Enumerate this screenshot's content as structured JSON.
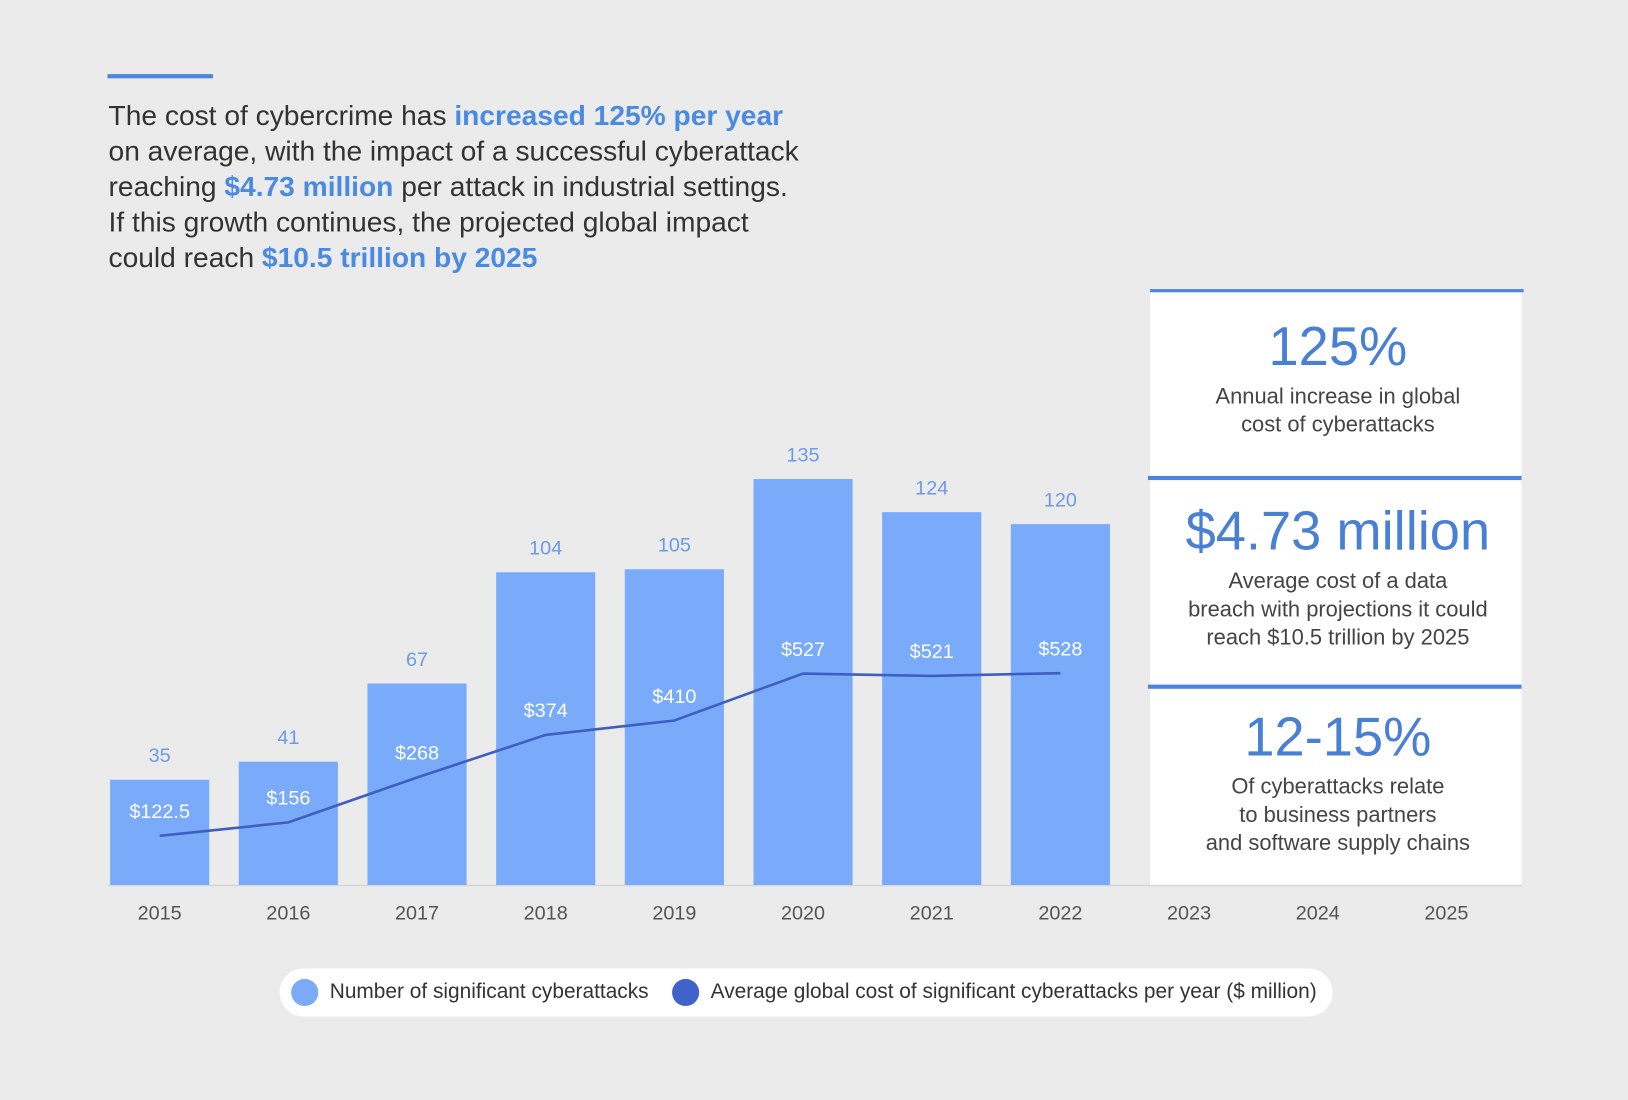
{
  "headline": [
    [
      {
        "text": "The cost of cybercrime has ",
        "highlight": false
      },
      {
        "text": "increased 125% per year",
        "highlight": true
      }
    ],
    [
      {
        "text": "on average, with the impact of a successful cyberattack",
        "highlight": false
      }
    ],
    [
      {
        "text": "reaching ",
        "highlight": false
      },
      {
        "text": "$4.73 million",
        "highlight": true
      },
      {
        "text": " per attack in industrial settings.",
        "highlight": false
      }
    ],
    [
      {
        "text": "If this growth continues, the projected global impact",
        "highlight": false
      }
    ],
    [
      {
        "text": "could reach ",
        "highlight": false
      },
      {
        "text": "$10.5 trillion by 2025",
        "highlight": true
      }
    ]
  ],
  "chart_data": {
    "type": "bar_line",
    "categories": [
      "2015",
      "2016",
      "2017",
      "2018",
      "2019",
      "2020",
      "2021",
      "2022",
      "2023",
      "2024",
      "2025"
    ],
    "series": [
      {
        "name": "Number of significant cyberattacks",
        "type": "bar",
        "color": "#7aabfb",
        "values": [
          35,
          41,
          67,
          104,
          105,
          135,
          124,
          120,
          null,
          null,
          null
        ]
      },
      {
        "name": "Average global cost of significant cyberattacks per year ($ million)",
        "type": "line",
        "axis": "y2",
        "color": "#3e5fbf",
        "values": [
          122.5,
          156,
          268,
          374,
          410,
          527,
          521,
          528,
          null,
          null,
          null
        ],
        "value_labels": [
          "$122.5",
          "$156",
          "$268",
          "$374",
          "$410",
          "$527",
          "$521",
          "$528",
          null,
          null,
          null
        ]
      }
    ],
    "legend": "bottom"
  },
  "stats": [
    {
      "value": "125%",
      "description": [
        "Annual increase in global",
        "cost of cyberattacks"
      ]
    },
    {
      "value": "$4.73 million",
      "description": [
        "Average cost of a data",
        "breach with projections it could",
        "reach $10.5 trillion by 2025"
      ]
    },
    {
      "value": "12-15%",
      "description": [
        "Of cyberattacks relate",
        "to business partners",
        "and software supply chains"
      ]
    }
  ]
}
